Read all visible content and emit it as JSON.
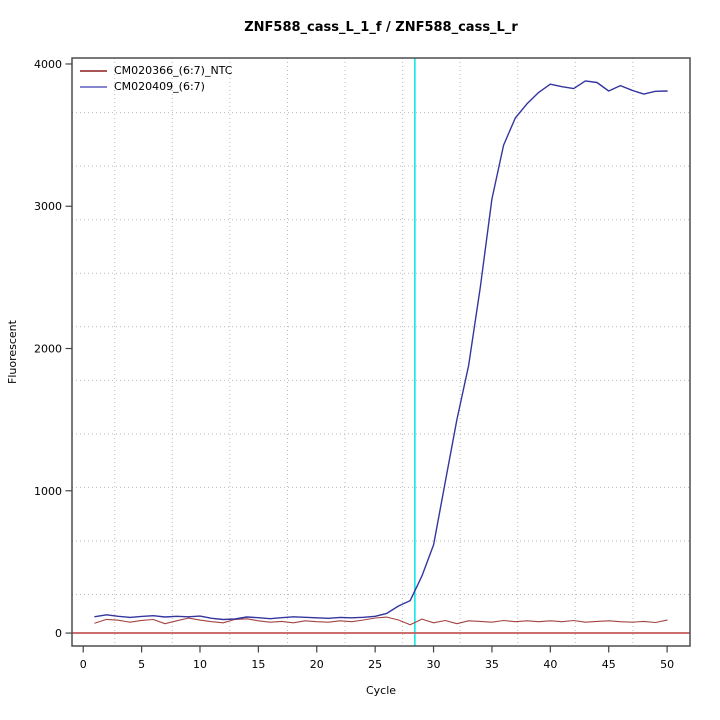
{
  "title": "ZNF588_cass_L_1_f / ZNF588_cass_L_r",
  "axes": {
    "x": {
      "label": "Cycle",
      "ticks": [
        0,
        5,
        10,
        15,
        20,
        25,
        30,
        35,
        40,
        45,
        50
      ]
    },
    "y": {
      "label": "Fluorescent",
      "ticks": [
        0,
        1000,
        2000,
        3000,
        4000
      ]
    }
  },
  "legend": {
    "items": [
      {
        "label": "CM020366_(6:7)_NTC",
        "color": "#aa5555"
      },
      {
        "label": "CM020409_(6:7)",
        "color": "#8585cd"
      }
    ]
  },
  "colors": {
    "box_border": "#4d4d4d",
    "tick": "#444444",
    "gridline": "#b9b9b9",
    "ct_line": "#00e5e5",
    "threshold_line": "#c25555"
  },
  "chart_data": {
    "type": "line",
    "title": "ZNF588_cass_L_1_f / ZNF588_cass_L_r",
    "xlabel": "Cycle",
    "ylabel": "Fluorescent",
    "xlim": [
      -0.96,
      51.96
    ],
    "ylim": [
      -91,
      4042
    ],
    "grid": true,
    "legend_position": "top-left",
    "x_gridlines": [
      2.7,
      7.63,
      12.56,
      17.49,
      22.42,
      27.35,
      32.28,
      37.21,
      42.14,
      47.07
    ],
    "y_gridlines": [
      271,
      647,
      1024,
      1400,
      1776,
      2153,
      2529,
      2905,
      3282,
      3658
    ],
    "ct_line_x": 28.4,
    "threshold_line_y": 0,
    "x": [
      1,
      2,
      3,
      4,
      5,
      6,
      7,
      8,
      9,
      10,
      11,
      12,
      13,
      14,
      15,
      16,
      17,
      18,
      19,
      20,
      21,
      22,
      23,
      24,
      25,
      26,
      27,
      28,
      29,
      30,
      31,
      32,
      33,
      34,
      35,
      36,
      37,
      38,
      39,
      40,
      41,
      42,
      43,
      44,
      45,
      46,
      47,
      48,
      49,
      50
    ],
    "series": [
      {
        "name": "CM020366_(6:7)_NTC",
        "color": "#a34444",
        "width": 1.1,
        "values": [
          70,
          96,
          90,
          76,
          89,
          95,
          66,
          86,
          105,
          91,
          80,
          72,
          96,
          100,
          86,
          76,
          82,
          72,
          86,
          80,
          76,
          86,
          80,
          92,
          106,
          112,
          92,
          58,
          98,
          72,
          88,
          66,
          86,
          82,
          76,
          88,
          80,
          86,
          80,
          86,
          80,
          88,
          76,
          82,
          86,
          80,
          76,
          82,
          74,
          91
        ]
      },
      {
        "name": "CM020409_(6:7)",
        "color": "#3535a0",
        "width": 1.4,
        "values": [
          115,
          128,
          118,
          110,
          117,
          122,
          113,
          118,
          114,
          119,
          104,
          95,
          99,
          113,
          108,
          101,
          108,
          114,
          111,
          107,
          104,
          110,
          107,
          111,
          118,
          138,
          190,
          228,
          400,
          620,
          1060,
          1500,
          1880,
          2430,
          3050,
          3430,
          3620,
          3720,
          3800,
          3858,
          3840,
          3827,
          3881,
          3870,
          3810,
          3848,
          3815,
          3788,
          3808,
          3810
        ]
      }
    ]
  }
}
